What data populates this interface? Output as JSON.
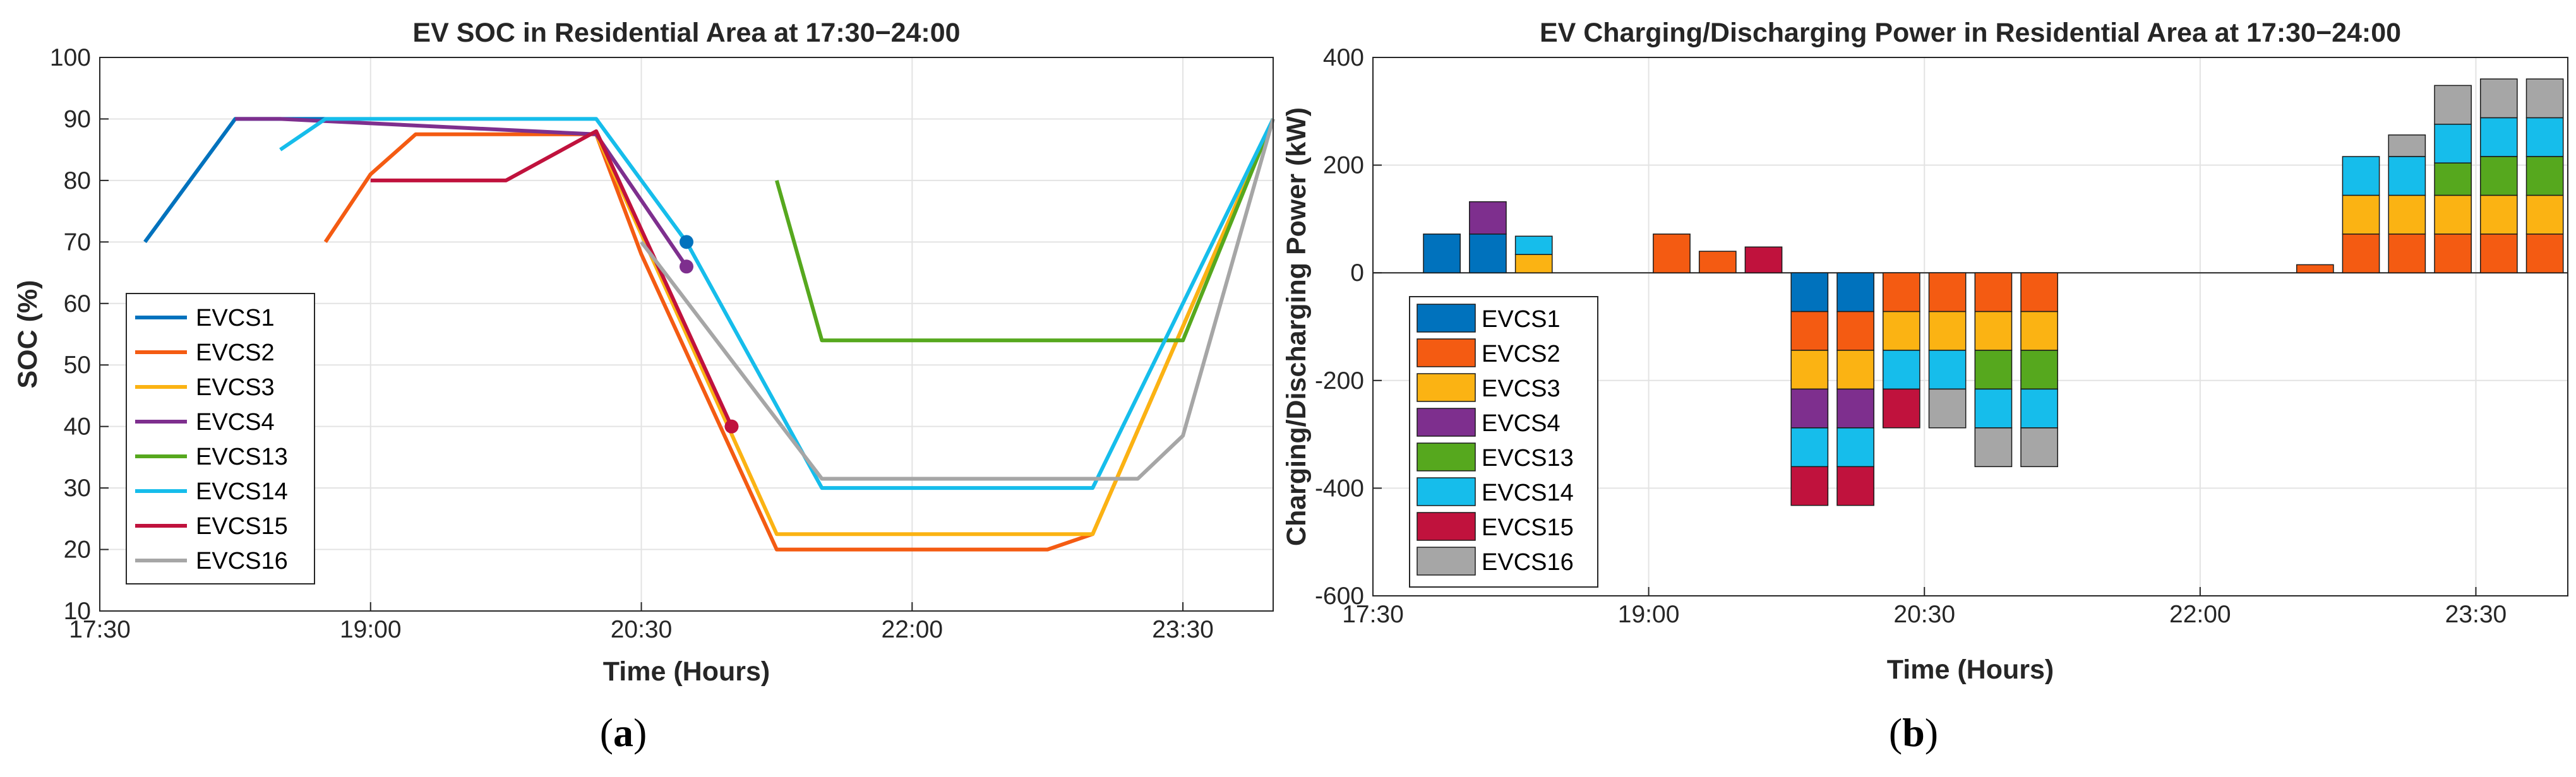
{
  "panels": {
    "a": {
      "letter": "a"
    },
    "b": {
      "letter": "b"
    }
  },
  "chart_data": [
    {
      "type": "line",
      "title": "EV SOC in Residential Area at 17:30−24:00",
      "xlabel": "Time (Hours)",
      "ylabel": "SOC (%)",
      "xlim": [
        "17:30",
        "24:00"
      ],
      "ylim": [
        10,
        100
      ],
      "x_ticks": [
        "17:30",
        "19:00",
        "20:30",
        "22:00",
        "23:30"
      ],
      "y_ticks": [
        10,
        20,
        30,
        40,
        50,
        60,
        70,
        80,
        90,
        100
      ],
      "grid": true,
      "legend_position": "lower-left",
      "series": [
        {
          "name": "EVCS1",
          "color": "#0072BD",
          "x": [
            "17:45",
            "18:15",
            "18:45"
          ],
          "y": [
            70,
            90,
            90
          ]
        },
        {
          "name": "EVCS2",
          "color": "#F45B12",
          "x": [
            "18:45",
            "19:00",
            "19:15",
            "20:15",
            "20:30",
            "21:15",
            "22:45",
            "23:00",
            "24:00"
          ],
          "y": [
            70,
            81,
            87.5,
            87.5,
            68,
            20,
            20,
            22.5,
            90
          ]
        },
        {
          "name": "EVCS3",
          "color": "#FBB313",
          "x": [
            "20:15",
            "21:15",
            "23:00",
            "24:00"
          ],
          "y": [
            87.5,
            22.5,
            22.5,
            90
          ]
        },
        {
          "name": "EVCS4",
          "color": "#7E2F8E",
          "x": [
            "18:15",
            "18:30",
            "20:15",
            "20:45"
          ],
          "y": [
            90,
            90,
            87.5,
            66
          ]
        },
        {
          "name": "EVCS13",
          "color": "#56A81E",
          "x": [
            "21:15",
            "21:30",
            "23:30",
            "24:00"
          ],
          "y": [
            80,
            54,
            54,
            90
          ]
        },
        {
          "name": "EVCS14",
          "color": "#16BDEB",
          "x": [
            "18:30",
            "18:45",
            "20:15",
            "20:45",
            "21:30",
            "23:00",
            "24:00"
          ],
          "y": [
            85,
            90,
            90,
            70,
            30,
            30,
            90
          ]
        },
        {
          "name": "EVCS15",
          "color": "#C0123D",
          "x": [
            "19:00",
            "19:30",
            "19:45",
            "20:15",
            "21:00"
          ],
          "y": [
            80,
            80,
            80,
            88,
            40
          ]
        },
        {
          "name": "EVCS16",
          "color": "#A6A6A6",
          "x": [
            "20:30",
            "21:30",
            "23:15",
            "23:30",
            "24:00"
          ],
          "y": [
            70,
            31.5,
            31.5,
            38.5,
            90
          ]
        }
      ],
      "markers": [
        {
          "series": "EVCS1",
          "x": "20:45",
          "y": 70
        },
        {
          "series": "EVCS4",
          "x": "20:45",
          "y": 66
        },
        {
          "series": "EVCS15",
          "x": "21:00",
          "y": 40
        }
      ]
    },
    {
      "type": "bar",
      "stacked": true,
      "title": "EV Charging/Discharging Power in Residential Area at 17:30−24:00",
      "xlabel": "Time (Hours)",
      "ylabel": "Charging/Discharging Power (kW)",
      "xlim": [
        "17:30",
        "24:00"
      ],
      "ylim": [
        -600,
        400
      ],
      "x_ticks": [
        "17:30",
        "19:00",
        "20:30",
        "22:00",
        "23:30"
      ],
      "y_ticks": [
        -600,
        -400,
        -200,
        0,
        200,
        400
      ],
      "grid": true,
      "legend_position": "lower-left",
      "categories": [
        "17:45",
        "18:00",
        "18:15",
        "18:30",
        "18:45",
        "19:00",
        "19:15",
        "19:30",
        "19:45",
        "20:00",
        "20:15",
        "20:30",
        "20:45",
        "21:00",
        "21:15",
        "21:30",
        "21:45",
        "22:00",
        "22:15",
        "22:30",
        "22:45",
        "23:00",
        "23:15",
        "23:30",
        "23:45",
        "24:00"
      ],
      "series": [
        {
          "name": "EVCS1",
          "color": "#0072BD",
          "values": [
            0,
            72,
            72,
            0,
            0,
            0,
            0,
            0,
            0,
            -72,
            -72,
            0,
            0,
            0,
            0,
            0,
            0,
            0,
            0,
            0,
            0,
            0,
            0,
            0,
            0,
            0
          ]
        },
        {
          "name": "EVCS2",
          "color": "#F45B12",
          "values": [
            0,
            0,
            0,
            0,
            0,
            0,
            72,
            40,
            0,
            -72,
            -72,
            -72,
            -72,
            -72,
            -72,
            0,
            0,
            0,
            0,
            0,
            15,
            72,
            72,
            72,
            72,
            72
          ]
        },
        {
          "name": "EVCS3",
          "color": "#FBB313",
          "values": [
            0,
            0,
            0,
            34,
            0,
            0,
            0,
            0,
            0,
            -72,
            -72,
            -72,
            -72,
            -72,
            -72,
            0,
            0,
            0,
            0,
            0,
            0,
            72,
            72,
            72,
            72,
            72
          ]
        },
        {
          "name": "EVCS4",
          "color": "#7E2F8E",
          "values": [
            0,
            0,
            60,
            0,
            0,
            0,
            0,
            0,
            0,
            -72,
            -72,
            0,
            0,
            0,
            0,
            0,
            0,
            0,
            0,
            0,
            0,
            0,
            0,
            0,
            0,
            0
          ]
        },
        {
          "name": "EVCS13",
          "color": "#56A81E",
          "values": [
            0,
            0,
            0,
            0,
            0,
            0,
            0,
            0,
            0,
            0,
            0,
            0,
            0,
            -72,
            -72,
            0,
            0,
            0,
            0,
            0,
            0,
            0,
            0,
            60,
            72,
            72
          ]
        },
        {
          "name": "EVCS14",
          "color": "#16BDEB",
          "values": [
            0,
            0,
            0,
            34,
            0,
            0,
            0,
            0,
            0,
            -72,
            -72,
            -72,
            -72,
            -72,
            -72,
            0,
            0,
            0,
            0,
            0,
            0,
            72,
            72,
            72,
            72,
            72
          ]
        },
        {
          "name": "EVCS15",
          "color": "#C0123D",
          "values": [
            0,
            0,
            0,
            0,
            0,
            0,
            0,
            0,
            48,
            -72,
            -72,
            -72,
            0,
            0,
            0,
            0,
            0,
            0,
            0,
            0,
            0,
            0,
            0,
            0,
            0,
            0
          ]
        },
        {
          "name": "EVCS16",
          "color": "#A6A6A6",
          "values": [
            0,
            0,
            0,
            0,
            0,
            0,
            0,
            0,
            0,
            0,
            0,
            0,
            -72,
            -72,
            -72,
            0,
            0,
            0,
            0,
            0,
            0,
            0,
            40,
            72,
            72,
            72
          ]
        }
      ]
    }
  ]
}
